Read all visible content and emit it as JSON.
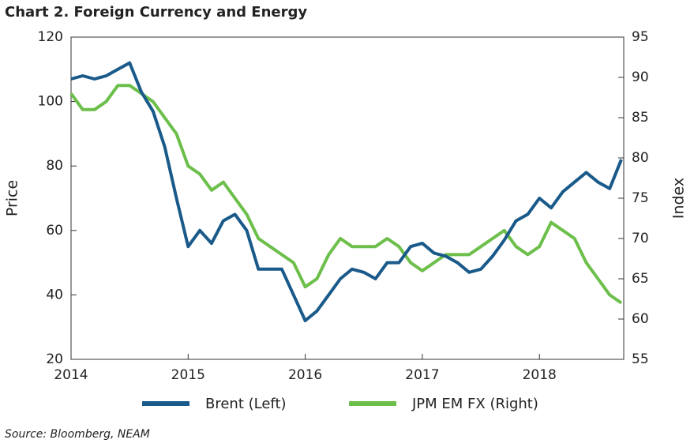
{
  "chart_data": {
    "type": "line",
    "title": "Chart 2. Foreign Currency and Energy",
    "source": "Source: Bloomberg, NEAM",
    "ylabel": "Price",
    "y2label": "Index",
    "x": [
      2014.0,
      2014.1,
      2014.2,
      2014.3,
      2014.4,
      2014.5,
      2014.6,
      2014.7,
      2014.8,
      2014.9,
      2015.0,
      2015.1,
      2015.2,
      2015.3,
      2015.4,
      2015.5,
      2015.6,
      2015.7,
      2015.8,
      2015.9,
      2016.0,
      2016.1,
      2016.2,
      2016.3,
      2016.4,
      2016.5,
      2016.6,
      2016.7,
      2016.8,
      2016.9,
      2017.0,
      2017.1,
      2017.2,
      2017.3,
      2017.4,
      2017.5,
      2017.6,
      2017.7,
      2017.8,
      2017.9,
      2018.0,
      2018.1,
      2018.2,
      2018.3,
      2018.4,
      2018.5,
      2018.6,
      2018.7
    ],
    "series": [
      {
        "name": "Brent (Left)",
        "color": "#1a5a8a",
        "axis": "y",
        "values": [
          107,
          108,
          107,
          108,
          110,
          112,
          103,
          97,
          86,
          70,
          55,
          60,
          56,
          63,
          65,
          60,
          48,
          48,
          48,
          40,
          32,
          35,
          40,
          45,
          48,
          47,
          45,
          50,
          50,
          55,
          56,
          53,
          52,
          50,
          47,
          48,
          52,
          57,
          63,
          65,
          70,
          67,
          72,
          75,
          78,
          75,
          73,
          82
        ]
      },
      {
        "name": "JPM EM FX (Right)",
        "color": "#6cbf4a",
        "axis": "y2",
        "values": [
          88,
          86,
          86,
          87,
          89,
          89,
          88,
          87,
          85,
          83,
          79,
          78,
          76,
          77,
          75,
          73,
          70,
          69,
          68,
          67,
          64,
          65,
          68,
          70,
          69,
          69,
          69,
          70,
          69,
          67,
          66,
          67,
          68,
          68,
          68,
          69,
          70,
          71,
          69,
          68,
          69,
          72,
          71,
          70,
          67,
          65,
          63,
          62
        ]
      }
    ],
    "xlim": [
      2014,
      2018.72
    ],
    "xticks": [
      2014,
      2015,
      2016,
      2017,
      2018
    ],
    "ylim": [
      20,
      120
    ],
    "yticks": [
      20,
      40,
      60,
      80,
      100,
      120
    ],
    "y2lim": [
      55,
      95
    ],
    "y2ticks": [
      55,
      60,
      65,
      70,
      75,
      80,
      85,
      90,
      95
    ]
  }
}
